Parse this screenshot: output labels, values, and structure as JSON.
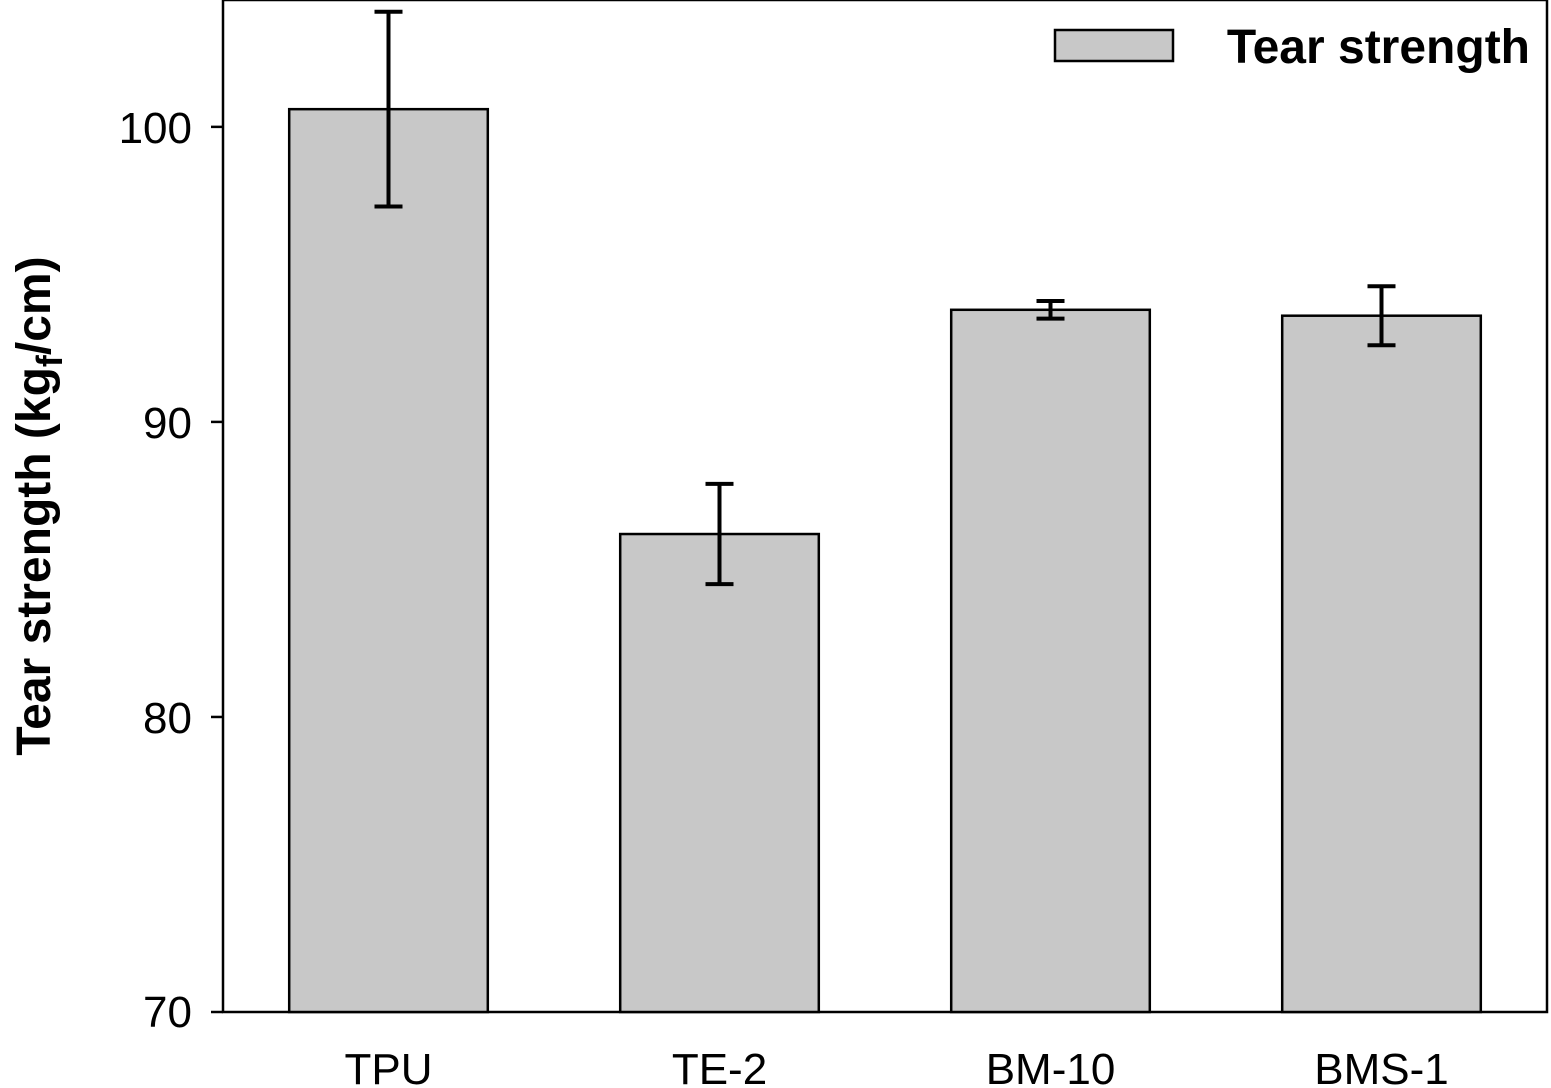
{
  "chart_data": {
    "type": "bar",
    "categories": [
      "TPU",
      "TE-2",
      "BM-10",
      "BMS-1"
    ],
    "series": [
      {
        "name": "Tear strength",
        "values": [
          100.6,
          86.2,
          93.8,
          93.6
        ],
        "errors": [
          3.3,
          1.7,
          0.3,
          1.0
        ],
        "color": "#c8c8c8"
      }
    ],
    "title": "",
    "xlabel": "",
    "ylabel": "Tear strength (kg",
    "ylabel_subscript": "f",
    "ylabel_suffix": "/cm)",
    "ylim": [
      70,
      104.3
    ],
    "yticks": [
      70,
      80,
      90,
      100
    ],
    "ytick_labels": [
      "70",
      "80",
      "90",
      "100"
    ],
    "legend": {
      "position": "top-right",
      "labels": [
        "Tear strength"
      ]
    },
    "grid": false
  }
}
